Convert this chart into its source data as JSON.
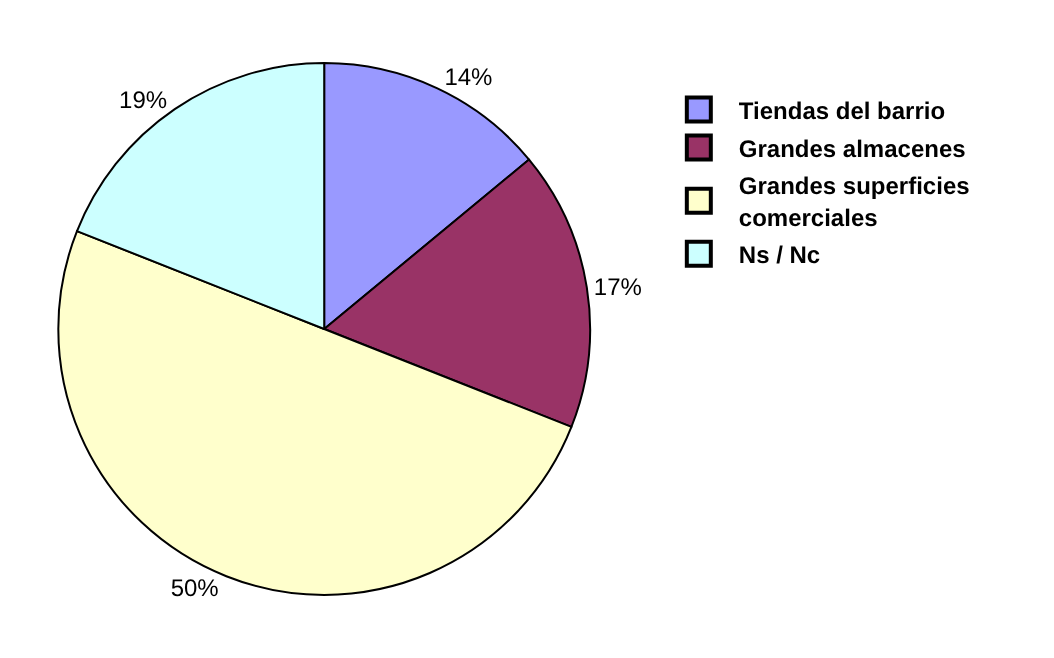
{
  "chart_data": {
    "type": "pie",
    "categories": [
      "Tiendas del barrio",
      "Grandes almacenes",
      "Grandes superficies comerciales",
      "Ns / Nc"
    ],
    "values": [
      14,
      17,
      50,
      19
    ],
    "colors": [
      "#9999ff",
      "#993366",
      "#ffffcc",
      "#ccffff"
    ],
    "value_labels": [
      "14%",
      "17%",
      "50%",
      "19%"
    ],
    "legend": "right"
  }
}
